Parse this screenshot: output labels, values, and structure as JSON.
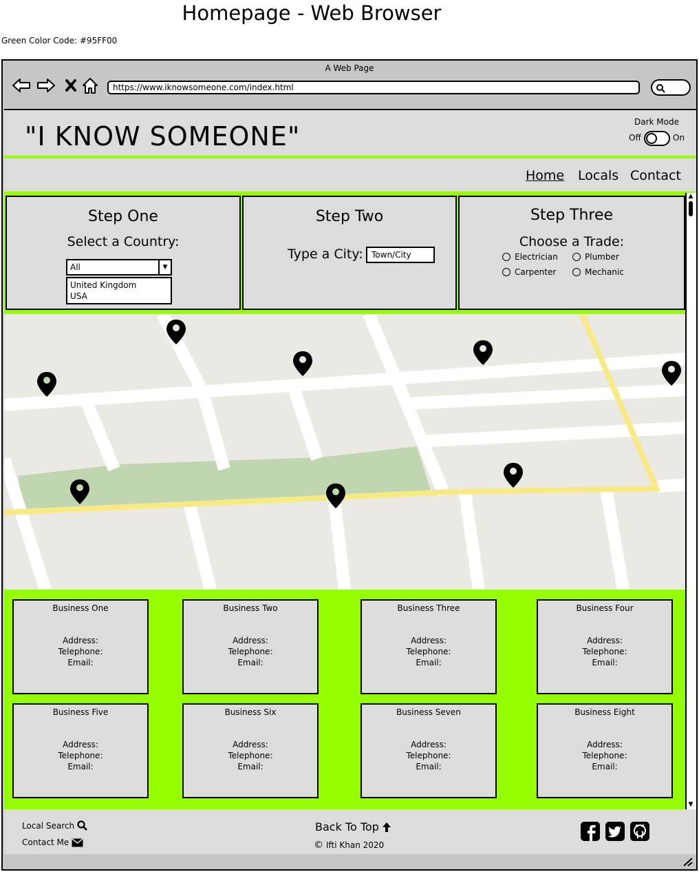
{
  "page_title": "Homepage - Web Browser",
  "color_note": "Green Color Code: #95FF00",
  "browser": {
    "window_title": "A Web Page",
    "url": "https://www.iknowsomeone.com/index.html"
  },
  "header": {
    "site_title": "\"I KNOW SOMEONE\"",
    "dark_mode_label": "Dark Mode",
    "off_label": "Off",
    "on_label": "On"
  },
  "nav": {
    "home": "Home",
    "locals": "Locals",
    "contact": "Contact"
  },
  "steps": {
    "one": {
      "title": "Step One",
      "label": "Select a Country:",
      "selected": "All",
      "options": [
        "United Kingdom",
        "USA"
      ]
    },
    "two": {
      "title": "Step Two",
      "label": "Type a City:",
      "placeholder": "Town/City"
    },
    "three": {
      "title": "Step Three",
      "label": "Choose a Trade:",
      "trades": [
        "Electrician",
        "Plumber",
        "Carpenter",
        "Mechanic"
      ]
    }
  },
  "businesses": [
    {
      "name": "Business One"
    },
    {
      "name": "Business Two"
    },
    {
      "name": "Business Three"
    },
    {
      "name": "Business Four"
    },
    {
      "name": "Business Five"
    },
    {
      "name": "Business Six"
    },
    {
      "name": "Business Seven"
    },
    {
      "name": "Business Eight"
    }
  ],
  "business_fields": {
    "address": "Address:",
    "telephone": "Telephone:",
    "email": "Email:"
  },
  "footer": {
    "local_search": "Local Search",
    "contact_me": "Contact Me",
    "back_to_top": "Back To Top",
    "copyright": "Ifti Khan 2020"
  },
  "colors": {
    "accent_green": "#95FF00",
    "panel_grey": "#DCDCDC",
    "chrome_grey": "#C6C6C6"
  },
  "icons": [
    "back-icon",
    "forward-icon",
    "close-icon",
    "home-icon",
    "search-icon",
    "map-pin-icon",
    "envelope-icon",
    "arrow-up-icon",
    "copyright-icon",
    "facebook-icon",
    "twitter-icon",
    "github-icon"
  ]
}
